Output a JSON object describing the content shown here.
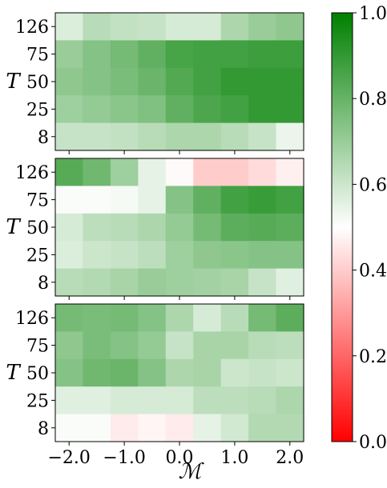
{
  "chart_data": {
    "type": "heatmap",
    "x_ticks": [
      "−2.0",
      "−1.0",
      "0.0",
      "1.0",
      "2.0"
    ],
    "x_tick_values": [
      -2,
      -1,
      0,
      1,
      2
    ],
    "x_cells": [
      -2.0,
      -1.5,
      -1.0,
      -0.5,
      0.0,
      0.5,
      1.0,
      1.5,
      2.0
    ],
    "xlabel": "ℳ",
    "y_categories": [
      "126",
      "75",
      "50",
      "25",
      "8"
    ],
    "ylabel": "T",
    "colorbar": {
      "range": [
        0.0,
        1.0
      ],
      "ticks": [
        "0.0",
        "0.2",
        "0.4",
        "0.6",
        "0.8",
        "1.0"
      ],
      "colors": {
        "low": "#ff0000",
        "mid": "#ffffff",
        "high": "#008000"
      }
    },
    "panels": [
      {
        "rows": [
          [
            0.57,
            0.64,
            0.62,
            0.61,
            0.58,
            0.58,
            0.66,
            0.7,
            0.72
          ],
          [
            0.7,
            0.74,
            0.77,
            0.81,
            0.86,
            0.87,
            0.87,
            0.88,
            0.88
          ],
          [
            0.72,
            0.74,
            0.76,
            0.79,
            0.84,
            0.87,
            0.9,
            0.9,
            0.9
          ],
          [
            0.69,
            0.71,
            0.73,
            0.75,
            0.81,
            0.85,
            0.87,
            0.9,
            0.9
          ],
          [
            0.61,
            0.61,
            0.62,
            0.64,
            0.66,
            0.66,
            0.64,
            0.61,
            0.54
          ]
        ]
      },
      {
        "rows": [
          [
            0.83,
            0.78,
            0.69,
            0.55,
            0.49,
            0.4,
            0.4,
            0.43,
            0.47
          ],
          [
            0.51,
            0.51,
            0.52,
            0.55,
            0.74,
            0.81,
            0.87,
            0.89,
            0.87
          ],
          [
            0.58,
            0.63,
            0.64,
            0.66,
            0.71,
            0.77,
            0.82,
            0.83,
            0.82
          ],
          [
            0.57,
            0.6,
            0.61,
            0.63,
            0.69,
            0.72,
            0.73,
            0.74,
            0.74
          ],
          [
            0.64,
            0.65,
            0.67,
            0.7,
            0.69,
            0.68,
            0.67,
            0.61,
            0.56
          ]
        ]
      },
      {
        "rows": [
          [
            0.77,
            0.76,
            0.77,
            0.74,
            0.66,
            0.58,
            0.64,
            0.77,
            0.82
          ],
          [
            0.72,
            0.76,
            0.74,
            0.71,
            0.61,
            0.67,
            0.67,
            0.64,
            0.63
          ],
          [
            0.74,
            0.78,
            0.79,
            0.74,
            0.66,
            0.67,
            0.6,
            0.61,
            0.6
          ],
          [
            0.56,
            0.56,
            0.58,
            0.58,
            0.58,
            0.63,
            0.63,
            0.64,
            0.66
          ],
          [
            0.51,
            0.51,
            0.46,
            0.48,
            0.46,
            0.55,
            0.59,
            0.65,
            0.65
          ]
        ]
      }
    ]
  }
}
